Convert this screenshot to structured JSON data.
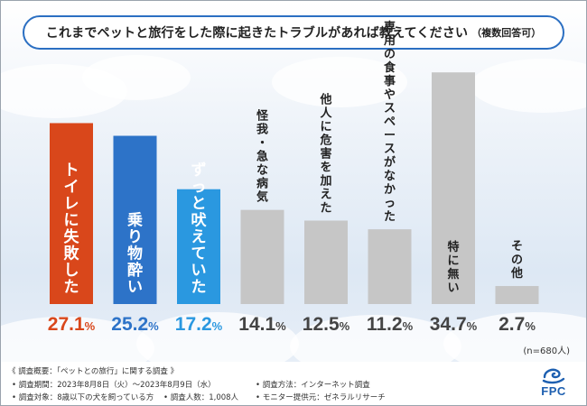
{
  "title": "これまでペットと旅行をした際に起きたトラブルがあれば教えてください",
  "title_note": "（複数回答可）",
  "n_note": "(n=680人)",
  "chart_data": {
    "type": "bar",
    "categories": [
      "トイレに失敗した",
      "乗り物酔い",
      "ずっと吠えていた",
      "怪我・急な病気",
      "他人に危害を加えた",
      "専用の食事やスペースがなかった",
      "特に無い",
      "その他"
    ],
    "values": [
      27.1,
      25.2,
      17.2,
      14.1,
      12.5,
      11.2,
      34.7,
      2.7
    ],
    "unit": "%",
    "ylim": [
      0,
      40
    ],
    "grid": false,
    "colors": [
      "#d9471b",
      "#2d73c8",
      "#2a98e0",
      "#c6c6c6",
      "#c6c6c6",
      "#c6c6c6",
      "#c6c6c6",
      "#c6c6c6"
    ],
    "label_colors": [
      "#d9471b",
      "#2d73c8",
      "#2a98e0",
      "#444444",
      "#444444",
      "#444444",
      "#444444",
      "#444444"
    ]
  },
  "footer": {
    "heading": "《 調査概要：「ペットとの旅行」に関する調査 》",
    "period": "• 調査期間：2023年8月8日（火）～2023年8月9日（水）",
    "target": "• 調査対象：8歳以下の犬を飼っている方",
    "count": "• 調査人数：1,008人",
    "method": "• 調査方法：インターネット調査",
    "provider": "• モニター提供元：ゼネラルリサーチ"
  },
  "logo": {
    "text": "FPC",
    "icon": "wave-swirl-icon",
    "color": "#1d5fb0"
  }
}
